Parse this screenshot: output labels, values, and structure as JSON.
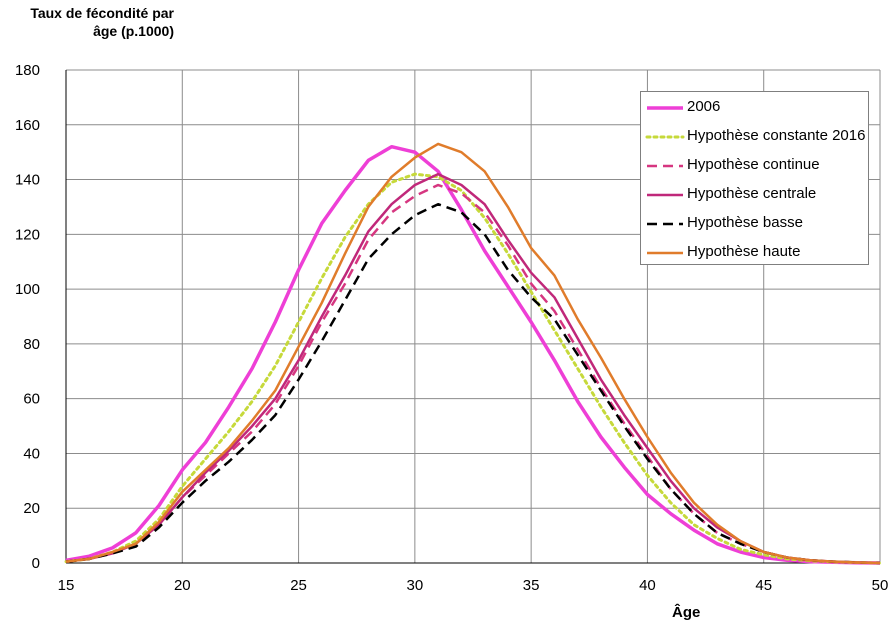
{
  "chart_data": {
    "type": "line",
    "ylabel": "Taux de fécondité par âge (p.1000)",
    "ylabel_lines": [
      "Taux de fécondité par",
      "âge (p.1000)"
    ],
    "xlabel": "Âge",
    "xlim": [
      15,
      50
    ],
    "ylim": [
      0,
      180
    ],
    "xticks": [
      15,
      20,
      25,
      30,
      35,
      40,
      45,
      50
    ],
    "yticks": [
      0,
      20,
      40,
      60,
      80,
      100,
      120,
      140,
      160,
      180
    ],
    "grid": true,
    "legend_position": "top-right",
    "x": [
      15,
      16,
      17,
      18,
      19,
      20,
      21,
      22,
      23,
      24,
      25,
      26,
      27,
      28,
      29,
      30,
      31,
      32,
      33,
      34,
      35,
      36,
      37,
      38,
      39,
      40,
      41,
      42,
      43,
      44,
      45,
      46,
      47,
      48,
      49,
      50
    ],
    "series": [
      {
        "name": "2006",
        "color": "#ee3fd6",
        "style": "solid",
        "width": 3.5,
        "values": [
          1,
          2.5,
          5.5,
          11,
          21,
          34,
          44,
          57,
          71,
          88,
          107,
          124,
          136,
          147,
          152,
          150,
          143,
          129,
          114,
          101,
          88,
          74,
          59,
          46,
          35,
          25,
          18,
          12,
          7,
          4,
          2,
          1,
          0.5,
          0.3,
          0.1,
          0
        ]
      },
      {
        "name": "Hypothèse constante 2016",
        "color": "#c6d93a",
        "style": "dotted",
        "width": 3,
        "values": [
          0.5,
          1.5,
          4,
          8,
          16,
          28,
          38,
          48,
          59,
          72,
          88,
          104,
          119,
          131,
          139,
          142,
          141,
          136,
          126,
          113,
          99,
          85,
          71,
          57,
          44,
          32,
          22,
          14,
          9,
          5,
          3,
          1.5,
          0.8,
          0.4,
          0.2,
          0
        ]
      },
      {
        "name": "Hypothèse continue",
        "color": "#d63680",
        "style": "dashed",
        "width": 2.5,
        "values": [
          0.5,
          1.5,
          3.5,
          7,
          14,
          24,
          32,
          40,
          48,
          58,
          72,
          88,
          102,
          118,
          128,
          134,
          138,
          135,
          128,
          116,
          102,
          92,
          78,
          64,
          51,
          39,
          27,
          18,
          11,
          7,
          4,
          2,
          1,
          0.5,
          0.2,
          0
        ]
      },
      {
        "name": "Hypothèse centrale",
        "color": "#c0287a",
        "style": "solid",
        "width": 2.5,
        "values": [
          0.5,
          1.5,
          3.5,
          7,
          14,
          24,
          33,
          41,
          50,
          60,
          74,
          90,
          105,
          121,
          131,
          138,
          142,
          138,
          131,
          118,
          106,
          97,
          82,
          67,
          54,
          42,
          30,
          20,
          13,
          8,
          4,
          2,
          1,
          0.5,
          0.2,
          0
        ]
      },
      {
        "name": "Hypothèse basse",
        "color": "#000000",
        "style": "dashed",
        "width": 2.5,
        "values": [
          0.5,
          1.5,
          3.5,
          6,
          13,
          22,
          30,
          37,
          45,
          54,
          67,
          81,
          96,
          111,
          120,
          127,
          131,
          128,
          120,
          107,
          97,
          89,
          76,
          63,
          50,
          38,
          27,
          18,
          11,
          7,
          4,
          2,
          1,
          0.5,
          0.2,
          0
        ]
      },
      {
        "name": "Hypothèse haute",
        "color": "#e07c2b",
        "style": "solid",
        "width": 2.5,
        "values": [
          0.5,
          1.5,
          4,
          7,
          15,
          26,
          34,
          42,
          52,
          63,
          79,
          95,
          113,
          130,
          141,
          148,
          153,
          150,
          143,
          130,
          115,
          105,
          89,
          75,
          60,
          46,
          33,
          22,
          14,
          8,
          4,
          2,
          1,
          0.5,
          0.2,
          0
        ]
      }
    ]
  }
}
